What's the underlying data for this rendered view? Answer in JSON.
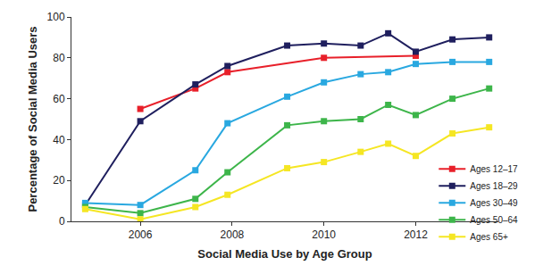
{
  "chart_data": {
    "type": "line",
    "x_label": "Social Media Use by Age Group",
    "y_label": "Percentage of Social Media Users",
    "x": [
      2004.8,
      2006.0,
      2007.2,
      2007.9,
      2009.2,
      2010.0,
      2010.8,
      2011.4,
      2012.0,
      2012.8,
      2013.6
    ],
    "series": [
      {
        "name": "Ages 12–17",
        "color": "#e8202a",
        "x": [
          2006.0,
          2007.2,
          2007.9,
          2010.0,
          2012.0
        ],
        "values": [
          55,
          65,
          73,
          80,
          81
        ]
      },
      {
        "name": "Ages 18–29",
        "color": "#1f1f5e",
        "values": [
          8,
          49,
          67,
          76,
          86,
          87,
          86,
          92,
          83,
          89,
          90
        ]
      },
      {
        "name": "Ages 30–49",
        "color": "#29a8e0",
        "values": [
          9,
          8,
          25,
          48,
          61,
          68,
          72,
          73,
          77,
          78,
          78
        ]
      },
      {
        "name": "Ages 50–64",
        "color": "#3db54a",
        "values": [
          7,
          4,
          11,
          24,
          47,
          49,
          50,
          57,
          52,
          60,
          65
        ]
      },
      {
        "name": "Ages 65+",
        "color": "#f5e623",
        "values": [
          6,
          1,
          7,
          13,
          26,
          29,
          34,
          38,
          32,
          43,
          46
        ]
      }
    ],
    "xlim": [
      2004.5,
      2013.8
    ],
    "xticks": [
      2006,
      2008,
      2010,
      2012
    ],
    "ylim": [
      0,
      100
    ],
    "yticks": [
      0,
      20,
      40,
      60,
      80,
      100
    ],
    "grid": false,
    "legend": "lower right",
    "marker": "square",
    "line_style": "solid"
  }
}
